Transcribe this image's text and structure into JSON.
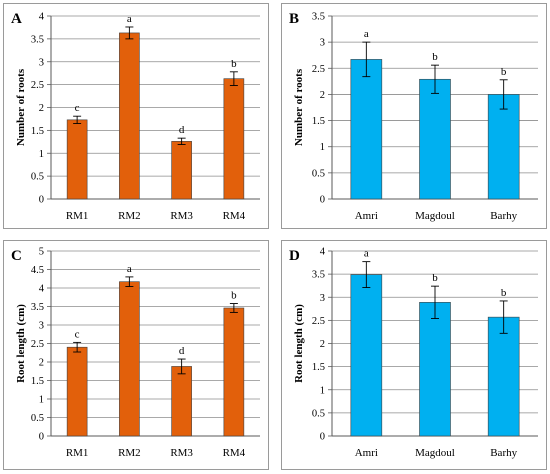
{
  "chart_data": [
    {
      "panel": "A",
      "type": "bar",
      "color": "#e2600b",
      "categories": [
        "RM1",
        "RM2",
        "RM3",
        "RM4"
      ],
      "values": [
        1.73,
        3.63,
        1.26,
        2.63
      ],
      "errors": [
        0.08,
        0.13,
        0.07,
        0.15
      ],
      "letters": [
        "c",
        "a",
        "d",
        "b"
      ],
      "ylabel": "Number of roots",
      "ylim": [
        0,
        4
      ],
      "yticks": [
        0,
        0.5,
        1,
        1.5,
        2,
        2.5,
        3,
        3.5,
        4
      ],
      "ytick_labels": [
        "0",
        "0.5",
        "1",
        "1.5",
        "2",
        "2.5",
        "3",
        "3.5",
        "4"
      ],
      "grid": true
    },
    {
      "panel": "B",
      "type": "bar",
      "color": "#00b0f0",
      "categories": [
        "Amri",
        "Magdoul",
        "Barhy"
      ],
      "values": [
        2.67,
        2.29,
        2.0
      ],
      "errors": [
        0.33,
        0.27,
        0.28
      ],
      "letters": [
        "a",
        "b",
        "b"
      ],
      "ylabel": "Number of roots",
      "ylim": [
        0,
        3.5
      ],
      "yticks": [
        0,
        0.5,
        1,
        1.5,
        2,
        2.5,
        3,
        3.5
      ],
      "ytick_labels": [
        "0",
        "0.5",
        "1",
        "1.5",
        "2",
        "2.5",
        "3",
        "3.5"
      ],
      "grid": true
    },
    {
      "panel": "C",
      "type": "bar",
      "color": "#e2600b",
      "categories": [
        "RM1",
        "RM2",
        "RM3",
        "RM4"
      ],
      "values": [
        2.4,
        4.17,
        1.88,
        3.46
      ],
      "errors": [
        0.13,
        0.13,
        0.2,
        0.12
      ],
      "letters": [
        "c",
        "a",
        "d",
        "b"
      ],
      "ylabel": "Root length (cm)",
      "ylim": [
        0,
        5
      ],
      "yticks": [
        0,
        0.5,
        1,
        1.5,
        2,
        2.5,
        3,
        3.5,
        4,
        4.5,
        5
      ],
      "ytick_labels": [
        "0",
        "0.5",
        "1",
        "1.5",
        "2",
        "2.5",
        "3",
        "3.5",
        "4",
        "4.5",
        "5"
      ],
      "grid": true
    },
    {
      "panel": "D",
      "type": "bar",
      "color": "#00b0f0",
      "categories": [
        "Amri",
        "Magdoul",
        "Barhy"
      ],
      "values": [
        3.49,
        2.89,
        2.57
      ],
      "errors": [
        0.28,
        0.35,
        0.35
      ],
      "letters": [
        "a",
        "b",
        "b"
      ],
      "ylabel": "Root length (cm)",
      "ylim": [
        0,
        4
      ],
      "yticks": [
        0,
        0.5,
        1,
        1.5,
        2,
        2.5,
        3,
        3.5,
        4
      ],
      "ytick_labels": [
        "0",
        "0.5",
        "1",
        "1.5",
        "2",
        "2.5",
        "3",
        "3.5",
        "4"
      ],
      "grid": true
    }
  ]
}
